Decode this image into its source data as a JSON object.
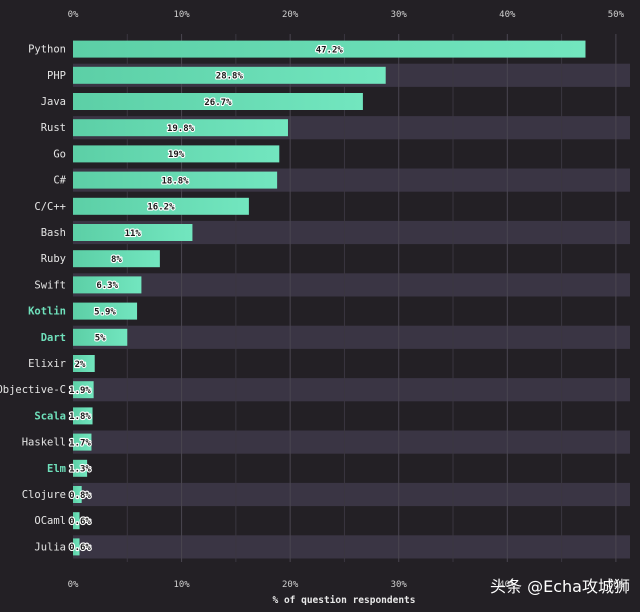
{
  "chart_data": {
    "type": "bar",
    "orientation": "horizontal",
    "categories": [
      "Python",
      "PHP",
      "Java",
      "Rust",
      "Go",
      "C#",
      "C/C++",
      "Bash",
      "Ruby",
      "Swift",
      "Kotlin",
      "Dart",
      "Elixir",
      "Objective-C",
      "Scala",
      "Haskell",
      "Elm",
      "Clojure",
      "OCaml",
      "Julia"
    ],
    "highlighted": [
      "Kotlin",
      "Dart",
      "Scala",
      "Elm"
    ],
    "values": [
      47.2,
      28.8,
      26.7,
      19.8,
      19,
      18.8,
      16.2,
      11,
      8,
      6.3,
      5.9,
      5,
      2,
      1.9,
      1.8,
      1.7,
      1.3,
      0.8,
      0.6,
      0.6
    ],
    "value_labels": [
      "47.2%",
      "28.8%",
      "26.7%",
      "19.8%",
      "19%",
      "18.8%",
      "16.2%",
      "11%",
      "8%",
      "6.3%",
      "5.9%",
      "5%",
      "2%",
      "1.9%",
      "1.8%",
      "1.7%",
      "1.3%",
      "0.8%",
      "0.6%",
      "0.6%"
    ],
    "xlim": [
      0,
      51.3
    ],
    "xticks": [
      0,
      10,
      20,
      30,
      40,
      50
    ],
    "xtick_labels": [
      "0%",
      "10%",
      "20%",
      "30%",
      "40%",
      "50%"
    ],
    "xlabel": "% of question respondents",
    "title": "",
    "ylabel": "",
    "grid": true,
    "colors": {
      "background": "#232025",
      "row_alt": "#3a3544",
      "bar_start": "#5ccfa6",
      "bar_end": "#72e6bf",
      "highlight_label": "#6fe0bb"
    }
  },
  "watermark": "头条 @Echa攻城狮"
}
